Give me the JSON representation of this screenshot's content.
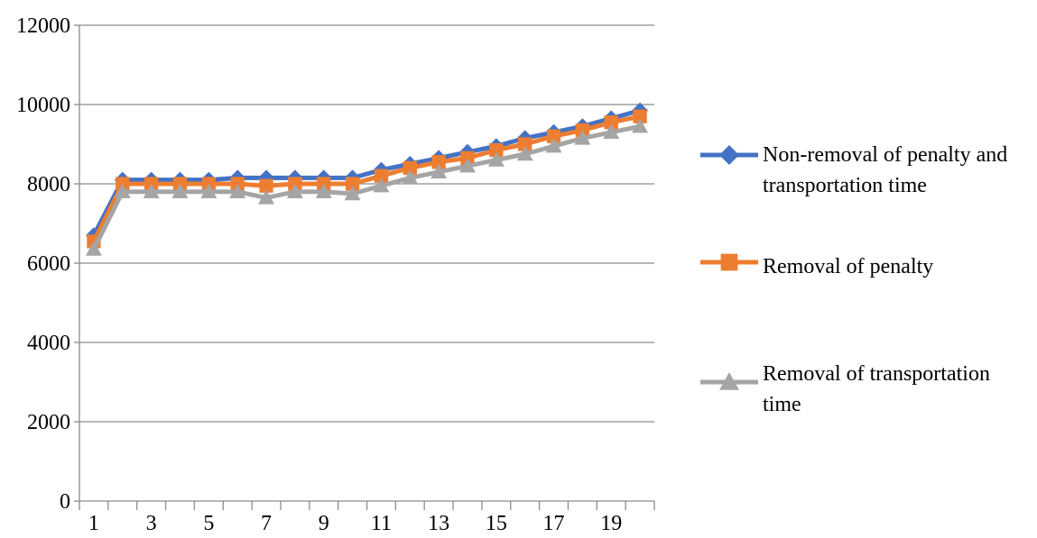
{
  "chart_data": {
    "type": "line",
    "x": [
      1,
      2,
      3,
      4,
      5,
      6,
      7,
      8,
      9,
      10,
      11,
      12,
      13,
      14,
      15,
      16,
      17,
      18,
      19,
      20
    ],
    "x_tick_labels": [
      "1",
      "3",
      "5",
      "7",
      "9",
      "11",
      "13",
      "15",
      "17",
      "19"
    ],
    "y_tick_labels": [
      "0",
      "2000",
      "4000",
      "6000",
      "8000",
      "10000",
      "12000"
    ],
    "ylim": [
      0,
      12000
    ],
    "grid": "horizontal",
    "legend_position": "right",
    "series": [
      {
        "name_lines": [
          "Non-removal of penalty and",
          "transportation time"
        ],
        "color": "#4472C4",
        "marker": "diamond",
        "values": [
          6700,
          8100,
          8100,
          8100,
          8100,
          8150,
          8150,
          8150,
          8150,
          8150,
          8350,
          8500,
          8650,
          8800,
          8950,
          9150,
          9300,
          9450,
          9650,
          9850
        ]
      },
      {
        "name_lines": [
          "Removal of penalty"
        ],
        "color": "#ED7D31",
        "marker": "square",
        "values": [
          6550,
          8000,
          8000,
          8000,
          8000,
          8000,
          7950,
          8000,
          8000,
          8000,
          8200,
          8400,
          8550,
          8650,
          8850,
          9000,
          9200,
          9350,
          9550,
          9700
        ]
      },
      {
        "name_lines": [
          "Removal of transportation",
          "time"
        ],
        "color": "#A5A5A5",
        "marker": "triangle",
        "values": [
          6350,
          7800,
          7800,
          7800,
          7800,
          7800,
          7650,
          7800,
          7800,
          7750,
          7950,
          8150,
          8300,
          8450,
          8600,
          8750,
          8950,
          9150,
          9300,
          9450
        ]
      }
    ]
  }
}
